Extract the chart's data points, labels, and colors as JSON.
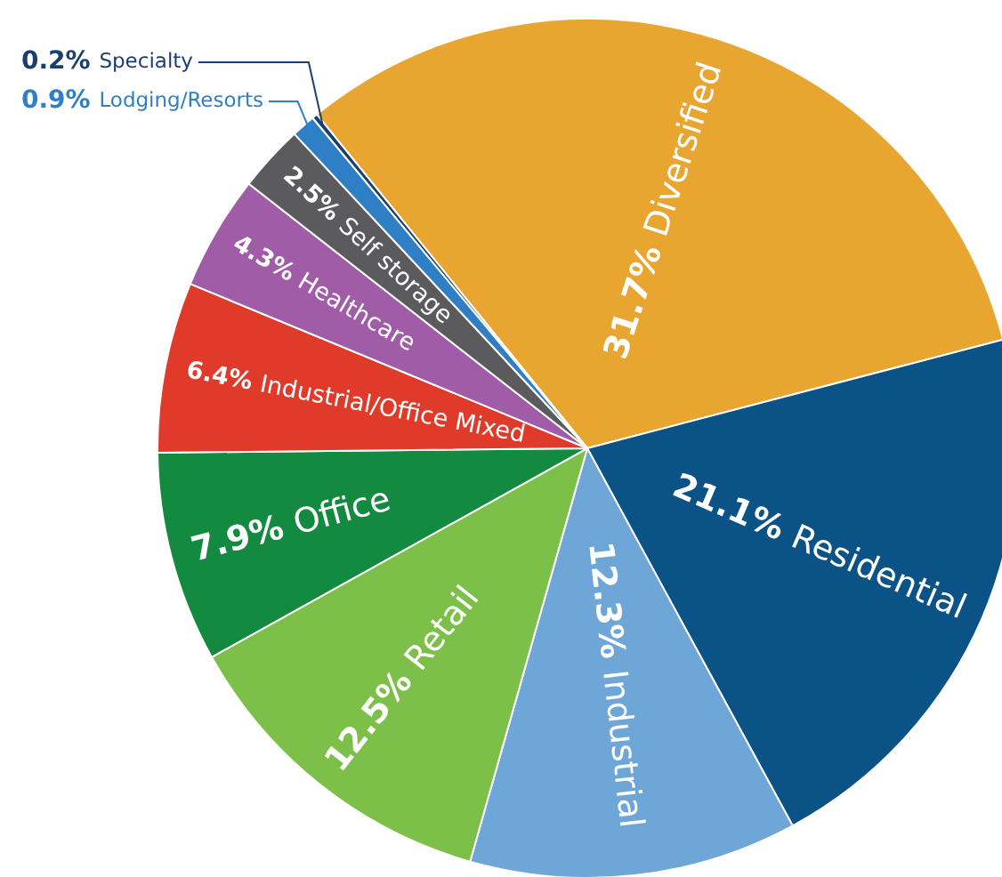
{
  "chart_data": {
    "type": "pie",
    "categories": [
      "Diversified",
      "Residential",
      "Industrial",
      "Retail",
      "Office",
      "Industrial/Office Mixed",
      "Healthcare",
      "Self storage",
      "Lodging/Resorts",
      "Specialty"
    ],
    "values": [
      31.7,
      21.1,
      12.3,
      12.5,
      7.9,
      6.4,
      4.3,
      2.5,
      0.9,
      0.2
    ],
    "value_labels": [
      "31.7%",
      "21.1%",
      "12.3%",
      "12.5%",
      "7.9%",
      "6.4%",
      "4.3%",
      "2.5%",
      "0.9%",
      "0.2%"
    ],
    "colors": [
      "#e8a530",
      "#0b5286",
      "#6fa6d8",
      "#7cc04a",
      "#148a40",
      "#e03a2a",
      "#a05ca6",
      "#5b5b5d",
      "#2f7fc7",
      "#1a3e6e"
    ]
  }
}
